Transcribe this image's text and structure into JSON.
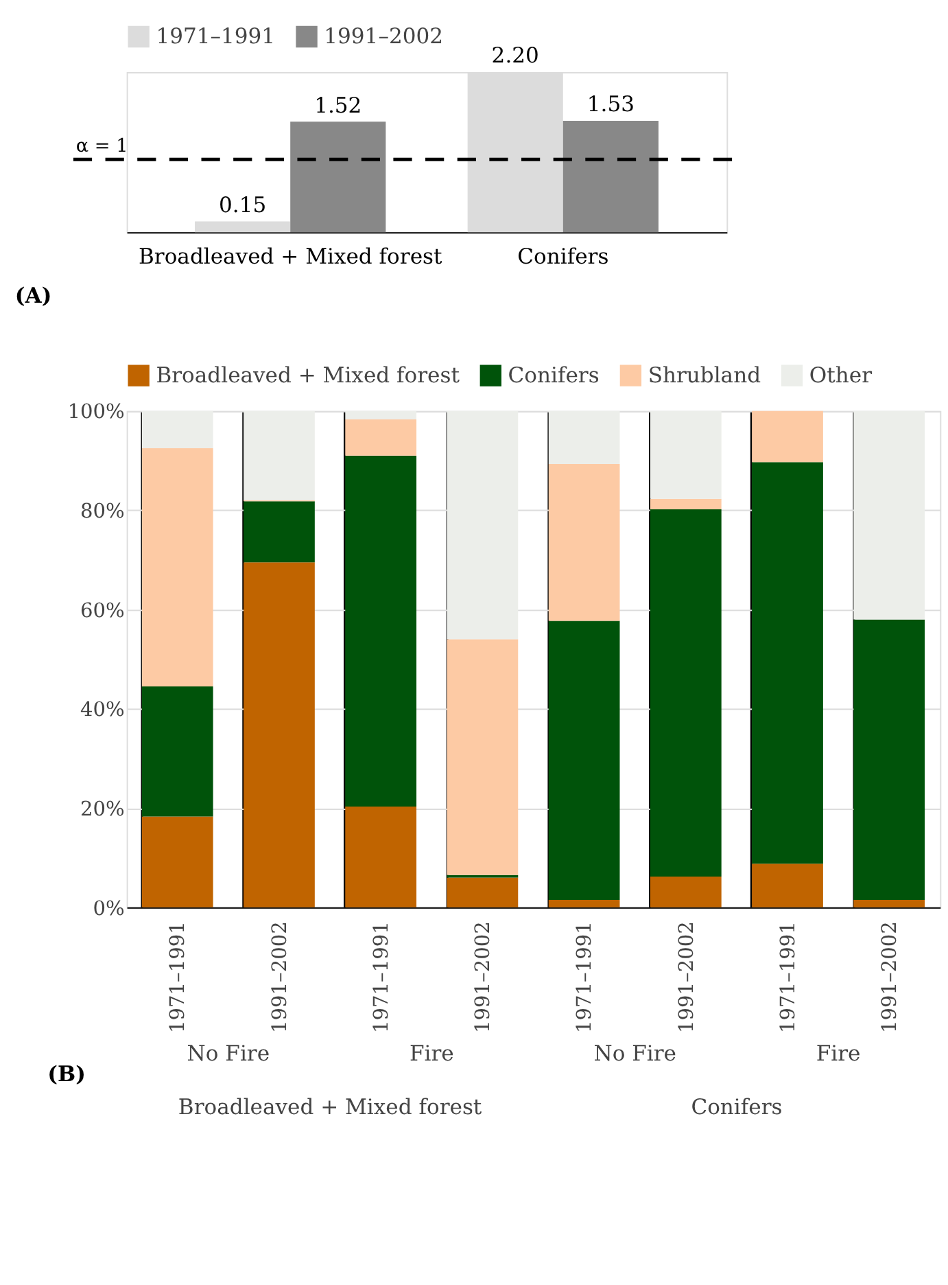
{
  "chart_data": [
    {
      "type": "bar",
      "categories": [
        "Broadleaved + Mixed forest",
        "Conifers"
      ],
      "series": [
        {
          "name": "1971–1991",
          "color": "#dcdcdc",
          "values": [
            0.15,
            2.2
          ],
          "value_labels": [
            "0.15",
            "2.20"
          ]
        },
        {
          "name": "1991–2002",
          "color": "#888888",
          "values": [
            1.52,
            1.53
          ],
          "value_labels": [
            "1.52",
            "1.53"
          ]
        }
      ],
      "ref_lines": [
        {
          "axis": "y",
          "value": 1,
          "label": "α = 1",
          "color": "#000000",
          "line_style": "dashed"
        }
      ],
      "annotations": [
        "(A)"
      ],
      "legend": "top",
      "grid": false,
      "tick_labels": "x"
    },
    {
      "type": "bar",
      "stacked": true,
      "categories": [
        "1971–1991",
        "1991–2002",
        "1971–1991",
        "1991–2002",
        "1971–1991",
        "1991–2002",
        "1971–1991",
        "1991–2002"
      ],
      "series": [
        {
          "name": "Broadleaved + Mixed forest",
          "color": "#c06400",
          "values": [
            18.3,
            69.5,
            20.3,
            6,
            1.5,
            6.2,
            8.8,
            1.5
          ]
        },
        {
          "name": "Conifers",
          "color": "#00530a",
          "values": [
            26.2,
            12.3,
            70.7,
            0.5,
            56.2,
            74,
            80.9,
            56.5
          ]
        },
        {
          "name": "Shrubland",
          "color": "#fdcaa4",
          "values": [
            48,
            0.2,
            7.3,
            47.5,
            31.6,
            2.1,
            10.3,
            0
          ]
        },
        {
          "name": "Other",
          "color": "#eceeea",
          "values": [
            7.5,
            18,
            1.7,
            46,
            10.7,
            17.7,
            0,
            42
          ]
        }
      ],
      "ylim": [
        0,
        100
      ],
      "yticks": [
        {
          "value": 0,
          "label": "0%"
        },
        {
          "value": 20,
          "label": "20%"
        },
        {
          "value": 40,
          "label": "40%"
        },
        {
          "value": 60,
          "label": "60%"
        },
        {
          "value": 80,
          "label": "80%"
        },
        {
          "value": 100,
          "label": "100%"
        }
      ],
      "annotations": [
        "No Fire",
        "Fire",
        "No Fire",
        "Fire",
        "Broadleaved + Mixed forest",
        "Conifers",
        "(B)"
      ],
      "legend": "top",
      "grid": true
    }
  ]
}
